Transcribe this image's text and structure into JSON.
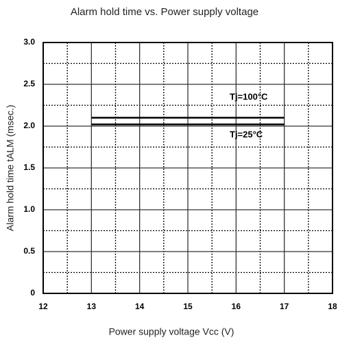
{
  "chart_data": {
    "type": "line",
    "title": "Alarm hold time vs. Power supply voltage",
    "x_label": "Power supply voltage  Vcc (V)",
    "y_label": "Alarm hold time  tALM (msec.)",
    "xlim": [
      12,
      18
    ],
    "xticks": [
      12,
      13,
      14,
      15,
      16,
      17,
      18
    ],
    "ylim": [
      0,
      3
    ],
    "yticks": [
      0,
      {
        "value": 0.5,
        "label": "0.5"
      },
      {
        "value": 1,
        "label": "1.0"
      },
      {
        "value": 1.5,
        "label": "1.5"
      },
      {
        "value": 2,
        "label": "2.0"
      },
      {
        "value": 2.5,
        "label": "2.5"
      },
      {
        "value": 3,
        "label": "3.0"
      }
    ],
    "grid": true,
    "series": [
      {
        "name": "Tj=100°C",
        "color": "#000000",
        "x": [
          13,
          17
        ],
        "values": [
          2.1,
          2.1
        ]
      },
      {
        "name": "Tj=25°C",
        "color": "#000000",
        "x": [
          13,
          17
        ],
        "values": [
          2.02,
          2.02
        ]
      }
    ]
  }
}
